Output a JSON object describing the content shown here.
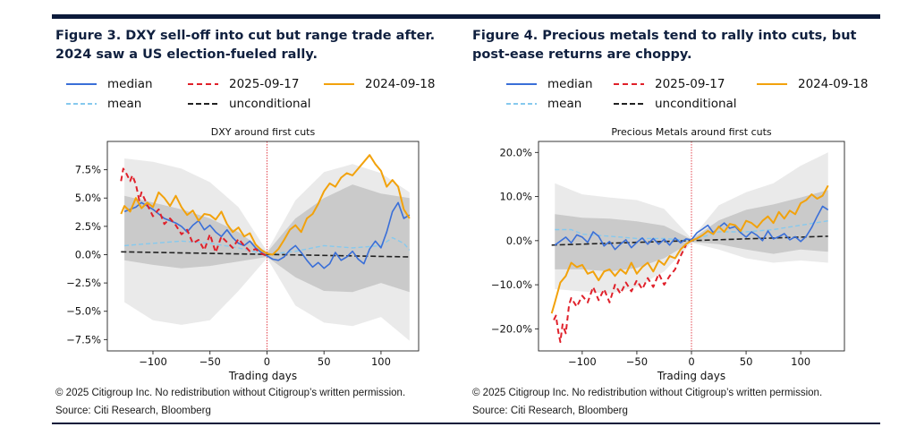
{
  "colors": {
    "median": "#3a6fd8",
    "date_2025": "#e0202a",
    "date_2024": "#f2a20c",
    "mean": "#86c9ee",
    "unconditional": "#222222",
    "band_outer": "#e6e6e6",
    "band_inner": "#c4c4c4",
    "vline": "#e0303a",
    "rule": "#0b1a3a"
  },
  "figures": [
    {
      "heading": "Figure 3. DXY sell-off into cut but range trade after. 2024 saw a US election-fueled rally.",
      "copyright": "© 2025 Citigroup Inc. No redistribution without Citigroup’s written permission.",
      "source": "Source: Citi Research, Bloomberg"
    },
    {
      "heading": "Figure 4. Precious metals tend to rally into cuts, but post-ease returns are choppy.",
      "copyright": "© 2025 Citigroup Inc. No redistribution without Citigroup’s written permission.",
      "source": "Source: Citi Research, Bloomberg"
    }
  ],
  "chart_data": [
    {
      "type": "line",
      "title": "DXY around first cuts",
      "xlabel": "Trading days",
      "ylabel": "",
      "xlim": [
        -140,
        133
      ],
      "ylim": [
        -8.5,
        10
      ],
      "xticks": [
        -100,
        -50,
        0,
        50,
        100
      ],
      "xtick_labels": [
        "−100",
        "−50",
        "0",
        "50",
        "100"
      ],
      "yticks": [
        7.5,
        5.0,
        2.5,
        0.0,
        -2.5,
        -5.0,
        -7.5
      ],
      "ytick_labels": [
        "7.5%",
        "5.0%",
        "2.5%",
        "0.0%",
        "−2.5%",
        "−5.0%",
        "−7.5%"
      ],
      "grid": false,
      "legend": "top",
      "vline_x": 0,
      "bands": [
        {
          "x": [
            -125,
            -100,
            -75,
            -50,
            -25,
            0,
            25,
            50,
            75,
            100,
            125
          ],
          "upper": [
            8.5,
            8.2,
            7.6,
            6.4,
            4.2,
            0.3,
            4.8,
            7.3,
            8.0,
            7.2,
            5.5
          ],
          "lower": [
            -4.2,
            -5.8,
            -6.2,
            -5.8,
            -3.2,
            -0.3,
            -4.5,
            -6.0,
            -6.3,
            -5.5,
            -7.6
          ]
        },
        {
          "x": [
            -125,
            -100,
            -75,
            -50,
            -25,
            0,
            25,
            50,
            75,
            100,
            125
          ],
          "upper": [
            5.2,
            4.6,
            4.0,
            3.2,
            2.0,
            0.2,
            3.2,
            5.0,
            6.2,
            5.4,
            5.0
          ],
          "lower": [
            -0.5,
            -0.9,
            -1.2,
            -1.0,
            -0.6,
            -0.2,
            -2.0,
            -3.2,
            -3.3,
            -2.5,
            -3.3
          ]
        }
      ],
      "series": [
        {
          "name": "median",
          "style": "solid",
          "x": [
            -125,
            -115,
            -110,
            -100,
            -95,
            -90,
            -80,
            -75,
            -70,
            -65,
            -60,
            -55,
            -50,
            -45,
            -40,
            -35,
            -30,
            -25,
            -20,
            -15,
            -10,
            -5,
            0,
            5,
            10,
            15,
            20,
            25,
            30,
            35,
            40,
            45,
            50,
            55,
            60,
            65,
            70,
            75,
            80,
            85,
            90,
            95,
            100,
            105,
            110,
            115,
            120,
            125
          ],
          "y": [
            3.8,
            4.2,
            4.6,
            4.0,
            3.6,
            3.2,
            2.8,
            2.5,
            2.0,
            2.6,
            3.0,
            2.2,
            2.6,
            2.0,
            1.6,
            2.2,
            1.5,
            1.0,
            0.8,
            1.2,
            0.6,
            0.2,
            -0.1,
            -0.4,
            -0.5,
            -0.2,
            0.4,
            0.8,
            0.2,
            -0.5,
            -1.1,
            -0.7,
            -1.2,
            -0.8,
            0.2,
            -0.5,
            -0.2,
            0.3,
            -0.4,
            -0.8,
            0.5,
            1.2,
            0.6,
            2.0,
            3.8,
            4.6,
            3.2,
            3.5
          ]
        },
        {
          "name": "2025-09-17",
          "style": "dashed",
          "x": [
            -128,
            -126,
            -124,
            -120,
            -118,
            -115,
            -112,
            -110,
            -105,
            -100,
            -95,
            -90,
            -85,
            -80,
            -75,
            -70,
            -65,
            -60,
            -55,
            -50,
            -45,
            -40,
            -35,
            -30,
            -25,
            -20,
            -15,
            -10,
            -5,
            0
          ],
          "y": [
            6.5,
            7.6,
            7.3,
            6.5,
            7.0,
            6.2,
            4.8,
            5.5,
            4.4,
            3.4,
            4.0,
            2.7,
            3.2,
            2.6,
            1.8,
            2.2,
            1.0,
            1.3,
            0.4,
            1.8,
            0.2,
            1.6,
            1.1,
            0.6,
            1.4,
            0.8,
            0.3,
            0.5,
            0.1,
            -0.1
          ]
        },
        {
          "name": "2024-09-18",
          "style": "solid",
          "x": [
            -128,
            -125,
            -120,
            -115,
            -110,
            -105,
            -100,
            -95,
            -90,
            -85,
            -80,
            -75,
            -70,
            -65,
            -60,
            -55,
            -50,
            -45,
            -40,
            -35,
            -30,
            -25,
            -20,
            -15,
            -10,
            -5,
            0,
            5,
            10,
            15,
            20,
            25,
            30,
            35,
            40,
            45,
            50,
            55,
            60,
            65,
            70,
            75,
            80,
            85,
            90,
            95,
            100,
            105,
            110,
            115,
            120,
            125
          ],
          "y": [
            3.6,
            4.3,
            3.8,
            5.0,
            4.1,
            4.6,
            4.2,
            5.5,
            5.0,
            4.3,
            5.2,
            4.2,
            3.5,
            3.9,
            3.0,
            3.6,
            3.5,
            3.1,
            3.8,
            2.7,
            2.0,
            2.4,
            1.6,
            1.9,
            0.9,
            0.4,
            0.1,
            0.0,
            0.5,
            1.3,
            2.2,
            2.6,
            2.0,
            3.2,
            3.6,
            4.5,
            5.6,
            6.3,
            6.0,
            6.8,
            7.2,
            7.0,
            7.6,
            8.2,
            8.8,
            8.0,
            7.4,
            6.0,
            6.6,
            6.0,
            4.0,
            3.2
          ]
        },
        {
          "name": "mean",
          "style": "dashed",
          "x": [
            -125,
            -100,
            -75,
            -50,
            -25,
            0,
            25,
            50,
            75,
            100,
            110,
            120,
            125
          ],
          "y": [
            0.8,
            1.0,
            1.2,
            1.0,
            0.6,
            0.0,
            0.3,
            0.8,
            0.6,
            0.8,
            1.5,
            1.0,
            0.4
          ]
        },
        {
          "name": "unconditional",
          "style": "dashed",
          "x": [
            -128,
            125
          ],
          "y": [
            0.25,
            -0.2
          ]
        }
      ]
    },
    {
      "type": "line",
      "title": "Precious Metals around first cuts",
      "xlabel": "Trading days",
      "ylabel": "",
      "xlim": [
        -140,
        140
      ],
      "ylim": [
        -25,
        22.5
      ],
      "xticks": [
        -100,
        -50,
        0,
        50,
        100
      ],
      "xtick_labels": [
        "−100",
        "−50",
        "0",
        "50",
        "100"
      ],
      "yticks": [
        20.0,
        10.0,
        0.0,
        -10.0,
        -20.0
      ],
      "ytick_labels": [
        "20.0%",
        "10.0%",
        "0.0%",
        "−10.0%",
        "−20.0%"
      ],
      "grid": false,
      "legend": "top",
      "vline_x": 0,
      "bands": [
        {
          "x": [
            -125,
            -100,
            -75,
            -50,
            -25,
            0,
            25,
            50,
            75,
            100,
            125
          ],
          "upper": [
            13.0,
            10.5,
            9.8,
            9.2,
            7.2,
            0.5,
            8.0,
            11.0,
            13.0,
            17.0,
            20.0
          ],
          "lower": [
            -11.0,
            -11.5,
            -12.0,
            -10.5,
            -7.0,
            -0.5,
            -2.0,
            -4.0,
            -5.0,
            -4.5,
            -5.0
          ]
        },
        {
          "x": [
            -125,
            -100,
            -75,
            -50,
            -25,
            0,
            25,
            50,
            75,
            100,
            125
          ],
          "upper": [
            6.0,
            5.2,
            5.0,
            4.4,
            3.4,
            0.3,
            4.6,
            7.0,
            8.2,
            9.8,
            11.5
          ],
          "lower": [
            -6.5,
            -6.5,
            -7.0,
            -6.2,
            -4.0,
            -0.3,
            -0.8,
            -2.0,
            -3.0,
            -2.0,
            -2.5
          ]
        }
      ],
      "series": [
        {
          "name": "median",
          "style": "solid",
          "x": [
            -125,
            -115,
            -110,
            -105,
            -100,
            -95,
            -90,
            -85,
            -80,
            -75,
            -70,
            -65,
            -60,
            -55,
            -50,
            -45,
            -40,
            -35,
            -30,
            -25,
            -20,
            -15,
            -10,
            -5,
            0,
            5,
            10,
            15,
            20,
            25,
            30,
            35,
            40,
            45,
            50,
            55,
            60,
            65,
            70,
            75,
            80,
            85,
            90,
            95,
            100,
            105,
            110,
            115,
            120,
            125
          ],
          "y": [
            -1.0,
            0.8,
            -0.5,
            1.3,
            0.8,
            -0.4,
            2.0,
            1.0,
            -1.2,
            -0.2,
            -2.0,
            -0.8,
            0.2,
            -1.6,
            -0.4,
            0.6,
            -0.8,
            0.5,
            -0.8,
            0.3,
            -1.0,
            0.6,
            -0.5,
            0.4,
            0.2,
            1.8,
            2.6,
            3.5,
            1.8,
            3.0,
            4.0,
            2.8,
            3.2,
            1.8,
            0.8,
            2.0,
            1.2,
            0.0,
            2.2,
            0.4,
            0.9,
            1.6,
            0.2,
            0.9,
            -0.2,
            1.0,
            3.0,
            5.5,
            7.8,
            7.0
          ]
        },
        {
          "name": "2025-09-17",
          "style": "dashed",
          "x": [
            -126,
            -124,
            -122,
            -120,
            -118,
            -115,
            -112,
            -110,
            -105,
            -100,
            -95,
            -90,
            -85,
            -80,
            -75,
            -70,
            -65,
            -60,
            -55,
            -50,
            -45,
            -40,
            -35,
            -30,
            -25,
            -20,
            -15,
            -10,
            -5
          ],
          "y": [
            -18.0,
            -17.0,
            -20.5,
            -23.0,
            -19.0,
            -21.0,
            -14.5,
            -13.0,
            -15.0,
            -12.5,
            -14.0,
            -10.5,
            -13.5,
            -11.0,
            -14.0,
            -10.0,
            -12.0,
            -9.5,
            -11.5,
            -9.0,
            -11.0,
            -8.5,
            -10.5,
            -7.5,
            -10.0,
            -8.0,
            -6.5,
            -3.5,
            -1.0
          ]
        },
        {
          "name": "2024-09-18",
          "style": "solid",
          "x": [
            -128,
            -125,
            -120,
            -115,
            -110,
            -105,
            -100,
            -95,
            -90,
            -85,
            -80,
            -75,
            -70,
            -65,
            -60,
            -55,
            -50,
            -45,
            -40,
            -35,
            -30,
            -25,
            -20,
            -15,
            -10,
            -5,
            0,
            5,
            10,
            15,
            20,
            25,
            30,
            35,
            40,
            45,
            50,
            55,
            60,
            65,
            70,
            75,
            80,
            85,
            90,
            95,
            100,
            105,
            110,
            115,
            120,
            125
          ],
          "y": [
            -16.5,
            -14.0,
            -9.5,
            -8.0,
            -5.0,
            -6.0,
            -5.5,
            -7.5,
            -7.0,
            -9.0,
            -7.0,
            -6.5,
            -8.0,
            -6.5,
            -7.5,
            -5.0,
            -7.5,
            -6.0,
            -5.0,
            -7.0,
            -4.5,
            -5.5,
            -3.5,
            -4.0,
            -2.0,
            -0.8,
            0.0,
            0.5,
            1.2,
            2.2,
            1.5,
            3.2,
            2.0,
            3.8,
            3.5,
            2.2,
            4.5,
            4.0,
            3.0,
            4.5,
            5.5,
            4.0,
            6.5,
            5.0,
            6.8,
            6.0,
            8.5,
            9.2,
            10.5,
            9.5,
            10.2,
            12.5
          ]
        },
        {
          "name": "mean",
          "style": "dashed",
          "x": [
            -125,
            -110,
            -100,
            -75,
            -50,
            -25,
            0,
            25,
            50,
            75,
            100,
            125
          ],
          "y": [
            2.5,
            2.5,
            1.5,
            1.0,
            0.5,
            0.5,
            0.0,
            2.0,
            2.0,
            2.5,
            3.5,
            4.5
          ]
        },
        {
          "name": "unconditional",
          "style": "dashed",
          "x": [
            -128,
            125
          ],
          "y": [
            -1.0,
            1.0
          ]
        }
      ]
    }
  ]
}
